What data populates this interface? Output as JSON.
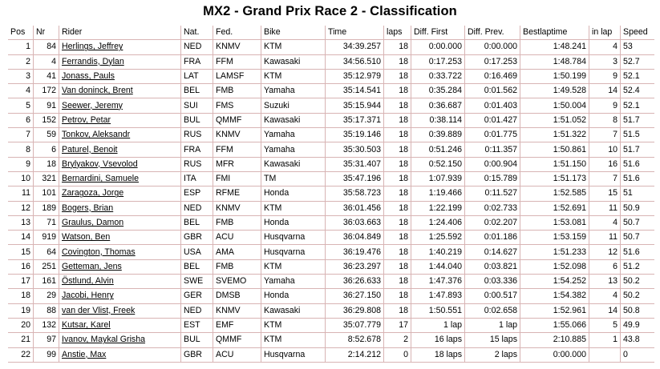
{
  "page": {
    "title": "MX2 - Grand Prix Race 2 - Classification"
  },
  "table": {
    "headers": [
      "Pos",
      "Nr",
      "Rider",
      "Nat.",
      "Fed.",
      "Bike",
      "Time",
      "laps",
      "Diff. First",
      "Diff. Prev.",
      "Bestlaptime",
      "in lap",
      "Speed"
    ],
    "colors": {
      "grid_line": "#d8b4b4",
      "text": "#000000",
      "background": "#ffffff"
    },
    "rows": [
      {
        "pos": "1",
        "nr": "84",
        "rider": "Herlings, Jeffrey",
        "nat": "NED",
        "fed": "KNMV",
        "bike": "KTM",
        "time": "34:39.257",
        "laps": "18",
        "diff_first": "0:00.000",
        "diff_prev": "0:00.000",
        "best": "1:48.241",
        "in_lap": "4",
        "speed": "53"
      },
      {
        "pos": "2",
        "nr": "4",
        "rider": "Ferrandis, Dylan",
        "nat": "FRA",
        "fed": "FFM",
        "bike": "Kawasaki",
        "time": "34:56.510",
        "laps": "18",
        "diff_first": "0:17.253",
        "diff_prev": "0:17.253",
        "best": "1:48.784",
        "in_lap": "3",
        "speed": "52.7"
      },
      {
        "pos": "3",
        "nr": "41",
        "rider": "Jonass, Pauls",
        "nat": "LAT",
        "fed": "LAMSF",
        "bike": "KTM",
        "time": "35:12.979",
        "laps": "18",
        "diff_first": "0:33.722",
        "diff_prev": "0:16.469",
        "best": "1:50.199",
        "in_lap": "9",
        "speed": "52.1"
      },
      {
        "pos": "4",
        "nr": "172",
        "rider": "Van doninck, Brent",
        "nat": "BEL",
        "fed": "FMB",
        "bike": "Yamaha",
        "time": "35:14.541",
        "laps": "18",
        "diff_first": "0:35.284",
        "diff_prev": "0:01.562",
        "best": "1:49.528",
        "in_lap": "14",
        "speed": "52.4"
      },
      {
        "pos": "5",
        "nr": "91",
        "rider": "Seewer, Jeremy",
        "nat": "SUI",
        "fed": "FMS",
        "bike": "Suzuki",
        "time": "35:15.944",
        "laps": "18",
        "diff_first": "0:36.687",
        "diff_prev": "0:01.403",
        "best": "1:50.004",
        "in_lap": "9",
        "speed": "52.1"
      },
      {
        "pos": "6",
        "nr": "152",
        "rider": "Petrov, Petar",
        "nat": "BUL",
        "fed": "QMMF",
        "bike": "Kawasaki",
        "time": "35:17.371",
        "laps": "18",
        "diff_first": "0:38.114",
        "diff_prev": "0:01.427",
        "best": "1:51.052",
        "in_lap": "8",
        "speed": "51.7"
      },
      {
        "pos": "7",
        "nr": "59",
        "rider": "Tonkov, Aleksandr",
        "nat": "RUS",
        "fed": "KNMV",
        "bike": "Yamaha",
        "time": "35:19.146",
        "laps": "18",
        "diff_first": "0:39.889",
        "diff_prev": "0:01.775",
        "best": "1:51.322",
        "in_lap": "7",
        "speed": "51.5"
      },
      {
        "pos": "8",
        "nr": "6",
        "rider": "Paturel, Benoit",
        "nat": "FRA",
        "fed": "FFM",
        "bike": "Yamaha",
        "time": "35:30.503",
        "laps": "18",
        "diff_first": "0:51.246",
        "diff_prev": "0:11.357",
        "best": "1:50.861",
        "in_lap": "10",
        "speed": "51.7"
      },
      {
        "pos": "9",
        "nr": "18",
        "rider": "Brylyakov, Vsevolod",
        "nat": "RUS",
        "fed": "MFR",
        "bike": "Kawasaki",
        "time": "35:31.407",
        "laps": "18",
        "diff_first": "0:52.150",
        "diff_prev": "0:00.904",
        "best": "1:51.150",
        "in_lap": "16",
        "speed": "51.6"
      },
      {
        "pos": "10",
        "nr": "321",
        "rider": "Bernardini, Samuele",
        "nat": "ITA",
        "fed": "FMI",
        "bike": "TM",
        "time": "35:47.196",
        "laps": "18",
        "diff_first": "1:07.939",
        "diff_prev": "0:15.789",
        "best": "1:51.173",
        "in_lap": "7",
        "speed": "51.6"
      },
      {
        "pos": "11",
        "nr": "101",
        "rider": "Zaragoza, Jorge",
        "nat": "ESP",
        "fed": "RFME",
        "bike": "Honda",
        "time": "35:58.723",
        "laps": "18",
        "diff_first": "1:19.466",
        "diff_prev": "0:11.527",
        "best": "1:52.585",
        "in_lap": "15",
        "speed": "51"
      },
      {
        "pos": "12",
        "nr": "189",
        "rider": "Bogers, Brian",
        "nat": "NED",
        "fed": "KNMV",
        "bike": "KTM",
        "time": "36:01.456",
        "laps": "18",
        "diff_first": "1:22.199",
        "diff_prev": "0:02.733",
        "best": "1:52.691",
        "in_lap": "11",
        "speed": "50.9"
      },
      {
        "pos": "13",
        "nr": "71",
        "rider": "Graulus, Damon",
        "nat": "BEL",
        "fed": "FMB",
        "bike": "Honda",
        "time": "36:03.663",
        "laps": "18",
        "diff_first": "1:24.406",
        "diff_prev": "0:02.207",
        "best": "1:53.081",
        "in_lap": "4",
        "speed": "50.7"
      },
      {
        "pos": "14",
        "nr": "919",
        "rider": "Watson, Ben",
        "nat": "GBR",
        "fed": "ACU",
        "bike": "Husqvarna",
        "time": "36:04.849",
        "laps": "18",
        "diff_first": "1:25.592",
        "diff_prev": "0:01.186",
        "best": "1:53.159",
        "in_lap": "11",
        "speed": "50.7"
      },
      {
        "pos": "15",
        "nr": "64",
        "rider": "Covington, Thomas",
        "nat": "USA",
        "fed": "AMA",
        "bike": "Husqvarna",
        "time": "36:19.476",
        "laps": "18",
        "diff_first": "1:40.219",
        "diff_prev": "0:14.627",
        "best": "1:51.233",
        "in_lap": "12",
        "speed": "51.6"
      },
      {
        "pos": "16",
        "nr": "251",
        "rider": "Getteman, Jens",
        "nat": "BEL",
        "fed": "FMB",
        "bike": "KTM",
        "time": "36:23.297",
        "laps": "18",
        "diff_first": "1:44.040",
        "diff_prev": "0:03.821",
        "best": "1:52.098",
        "in_lap": "6",
        "speed": "51.2"
      },
      {
        "pos": "17",
        "nr": "161",
        "rider": "Östlund, Alvin",
        "nat": "SWE",
        "fed": "SVEMO",
        "bike": "Yamaha",
        "time": "36:26.633",
        "laps": "18",
        "diff_first": "1:47.376",
        "diff_prev": "0:03.336",
        "best": "1:54.252",
        "in_lap": "13",
        "speed": "50.2"
      },
      {
        "pos": "18",
        "nr": "29",
        "rider": "Jacobi, Henry",
        "nat": "GER",
        "fed": "DMSB",
        "bike": "Honda",
        "time": "36:27.150",
        "laps": "18",
        "diff_first": "1:47.893",
        "diff_prev": "0:00.517",
        "best": "1:54.382",
        "in_lap": "4",
        "speed": "50.2"
      },
      {
        "pos": "19",
        "nr": "88",
        "rider": "van der Vlist, Freek",
        "nat": "NED",
        "fed": "KNMV",
        "bike": "Kawasaki",
        "time": "36:29.808",
        "laps": "18",
        "diff_first": "1:50.551",
        "diff_prev": "0:02.658",
        "best": "1:52.961",
        "in_lap": "14",
        "speed": "50.8"
      },
      {
        "pos": "20",
        "nr": "132",
        "rider": "Kutsar, Karel",
        "nat": "EST",
        "fed": "EMF",
        "bike": "KTM",
        "time": "35:07.779",
        "laps": "17",
        "diff_first": "1 lap",
        "diff_prev": "1 lap",
        "best": "1:55.066",
        "in_lap": "5",
        "speed": "49.9"
      },
      {
        "pos": "21",
        "nr": "97",
        "rider": "Ivanov, Maykal Grisha",
        "nat": "BUL",
        "fed": "QMMF",
        "bike": "KTM",
        "time": "8:52.678",
        "laps": "2",
        "diff_first": "16 laps",
        "diff_prev": "15 laps",
        "best": "2:10.885",
        "in_lap": "1",
        "speed": "43.8"
      },
      {
        "pos": "22",
        "nr": "99",
        "rider": "Anstie, Max",
        "nat": "GBR",
        "fed": "ACU",
        "bike": "Husqvarna",
        "time": "2:14.212",
        "laps": "0",
        "diff_first": "18 laps",
        "diff_prev": "2 laps",
        "best": "0:00.000",
        "in_lap": "",
        "speed": "0"
      }
    ]
  }
}
